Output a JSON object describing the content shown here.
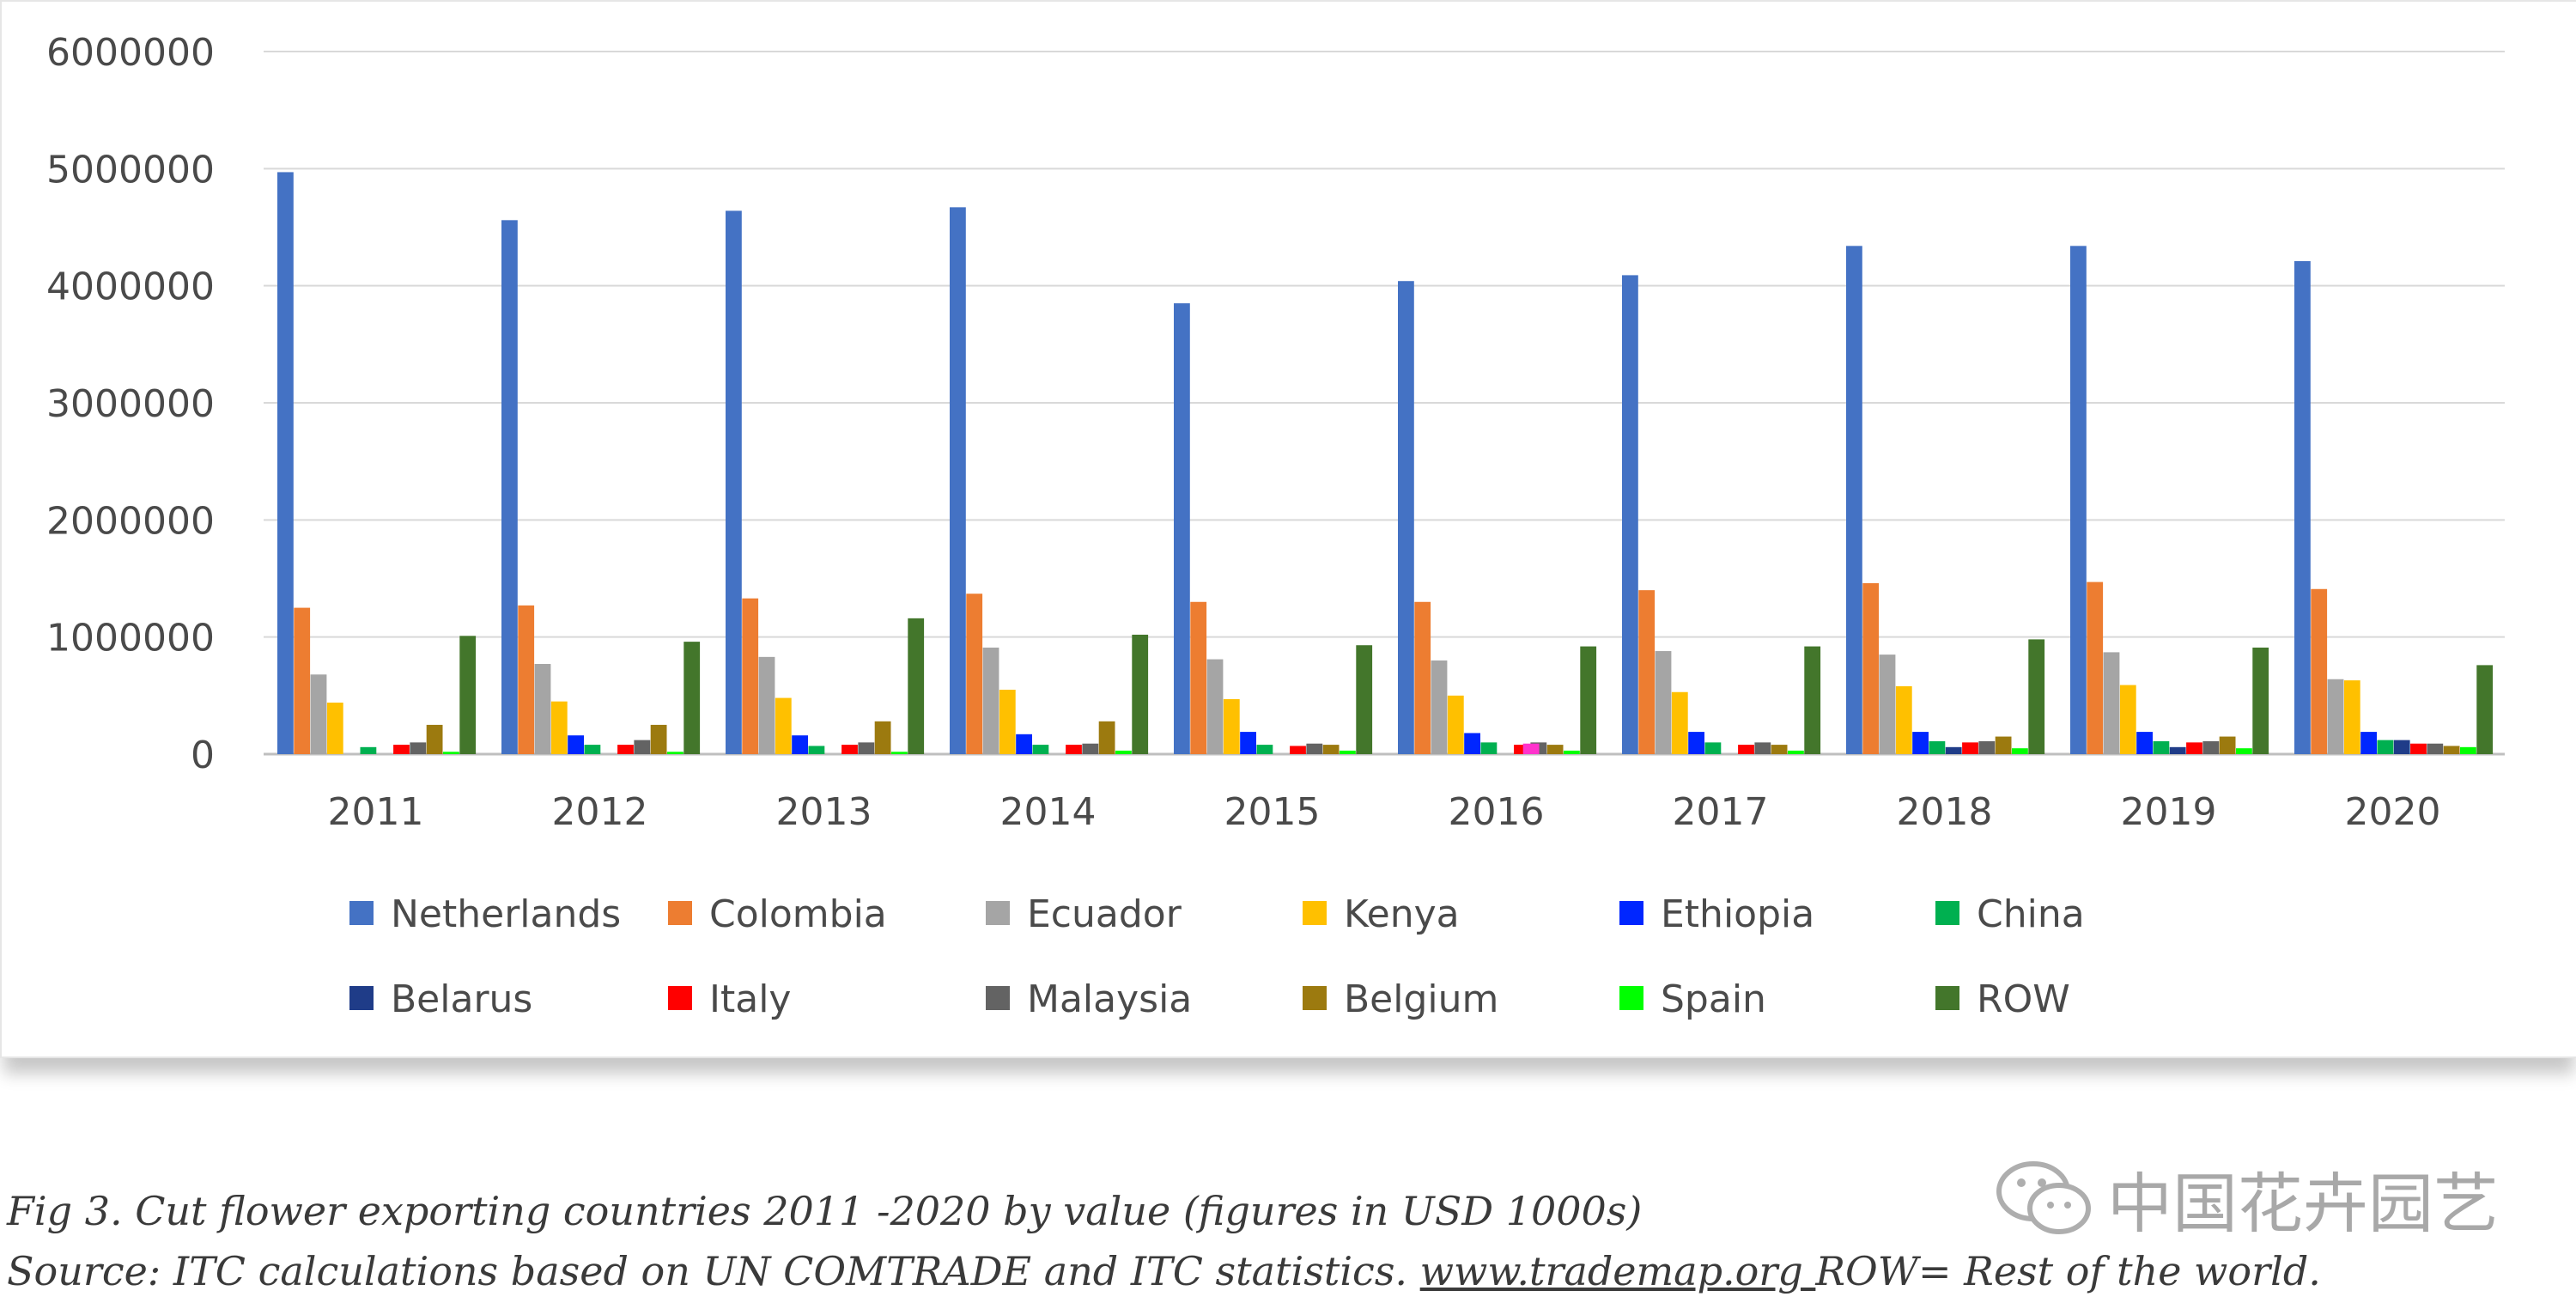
{
  "chart_data": {
    "type": "bar",
    "categories": [
      "2011",
      "2012",
      "2013",
      "2014",
      "2015",
      "2016",
      "2017",
      "2018",
      "2019",
      "2020"
    ],
    "ylim": [
      0,
      6000000
    ],
    "yticks": [
      "0",
      "1000000",
      "2000000",
      "3000000",
      "4000000",
      "5000000",
      "6000000"
    ],
    "grid": true,
    "legend_position": "bottom",
    "series": [
      {
        "name": "Netherlands",
        "color": "#4472C4",
        "values": [
          4970000,
          4560000,
          4640000,
          4670000,
          3850000,
          4040000,
          4090000,
          4340000,
          4340000,
          4210000
        ]
      },
      {
        "name": "Colombia",
        "color": "#ED7D31",
        "values": [
          1250000,
          1270000,
          1330000,
          1370000,
          1300000,
          1300000,
          1400000,
          1460000,
          1470000,
          1410000
        ]
      },
      {
        "name": "Ecuador",
        "color": "#A5A5A5",
        "values": [
          680000,
          770000,
          830000,
          910000,
          810000,
          800000,
          880000,
          850000,
          870000,
          640000
        ]
      },
      {
        "name": "Kenya",
        "color": "#FFC000",
        "values": [
          440000,
          450000,
          480000,
          550000,
          470000,
          500000,
          530000,
          580000,
          590000,
          630000
        ]
      },
      {
        "name": "Ethiopia",
        "color": "#0026FF",
        "values": [
          0,
          160000,
          160000,
          170000,
          190000,
          180000,
          190000,
          190000,
          190000,
          190000
        ]
      },
      {
        "name": "China",
        "color": "#00B050",
        "values": [
          60000,
          80000,
          70000,
          80000,
          80000,
          100000,
          100000,
          110000,
          110000,
          120000
        ]
      },
      {
        "name": "Belarus",
        "color": "#1F3C88",
        "values": [
          0,
          0,
          0,
          0,
          0,
          0,
          0,
          60000,
          60000,
          120000
        ]
      },
      {
        "name": "Italy",
        "color": "#FF0000",
        "values": [
          80000,
          80000,
          80000,
          80000,
          70000,
          80000,
          80000,
          100000,
          100000,
          90000
        ]
      },
      {
        "name": "Malaysia",
        "color": "#636363",
        "values": [
          100000,
          120000,
          100000,
          90000,
          90000,
          100000,
          100000,
          110000,
          110000,
          90000
        ]
      },
      {
        "name": "Belgium",
        "color": "#9C7A0F",
        "values": [
          250000,
          250000,
          280000,
          280000,
          80000,
          80000,
          80000,
          150000,
          150000,
          70000
        ]
      },
      {
        "name": "Spain",
        "color": "#00FF00",
        "values": [
          20000,
          20000,
          20000,
          30000,
          30000,
          30000,
          30000,
          50000,
          50000,
          60000
        ]
      },
      {
        "name": "ROW",
        "color": "#43762B",
        "values": [
          1010000,
          960000,
          1160000,
          1020000,
          930000,
          920000,
          920000,
          980000,
          910000,
          760000
        ]
      }
    ],
    "extra_bars": [
      {
        "category": "2016",
        "after_series": "Italy",
        "color": "#FF33CC",
        "value": 90000
      }
    ]
  },
  "caption": {
    "line1": "Fig 3. Cut flower exporting countries 2011 -2020 by value (figures in USD 1000s)",
    "line2_prefix": "Source: ITC calculations based on UN COMTRADE and ITC statistics. ",
    "line2_link": "www.trademap.org ",
    "line2_suffix": "ROW= Rest of the world."
  },
  "watermark": {
    "text": "中国花卉园艺",
    "icon": "wechat-icon"
  }
}
